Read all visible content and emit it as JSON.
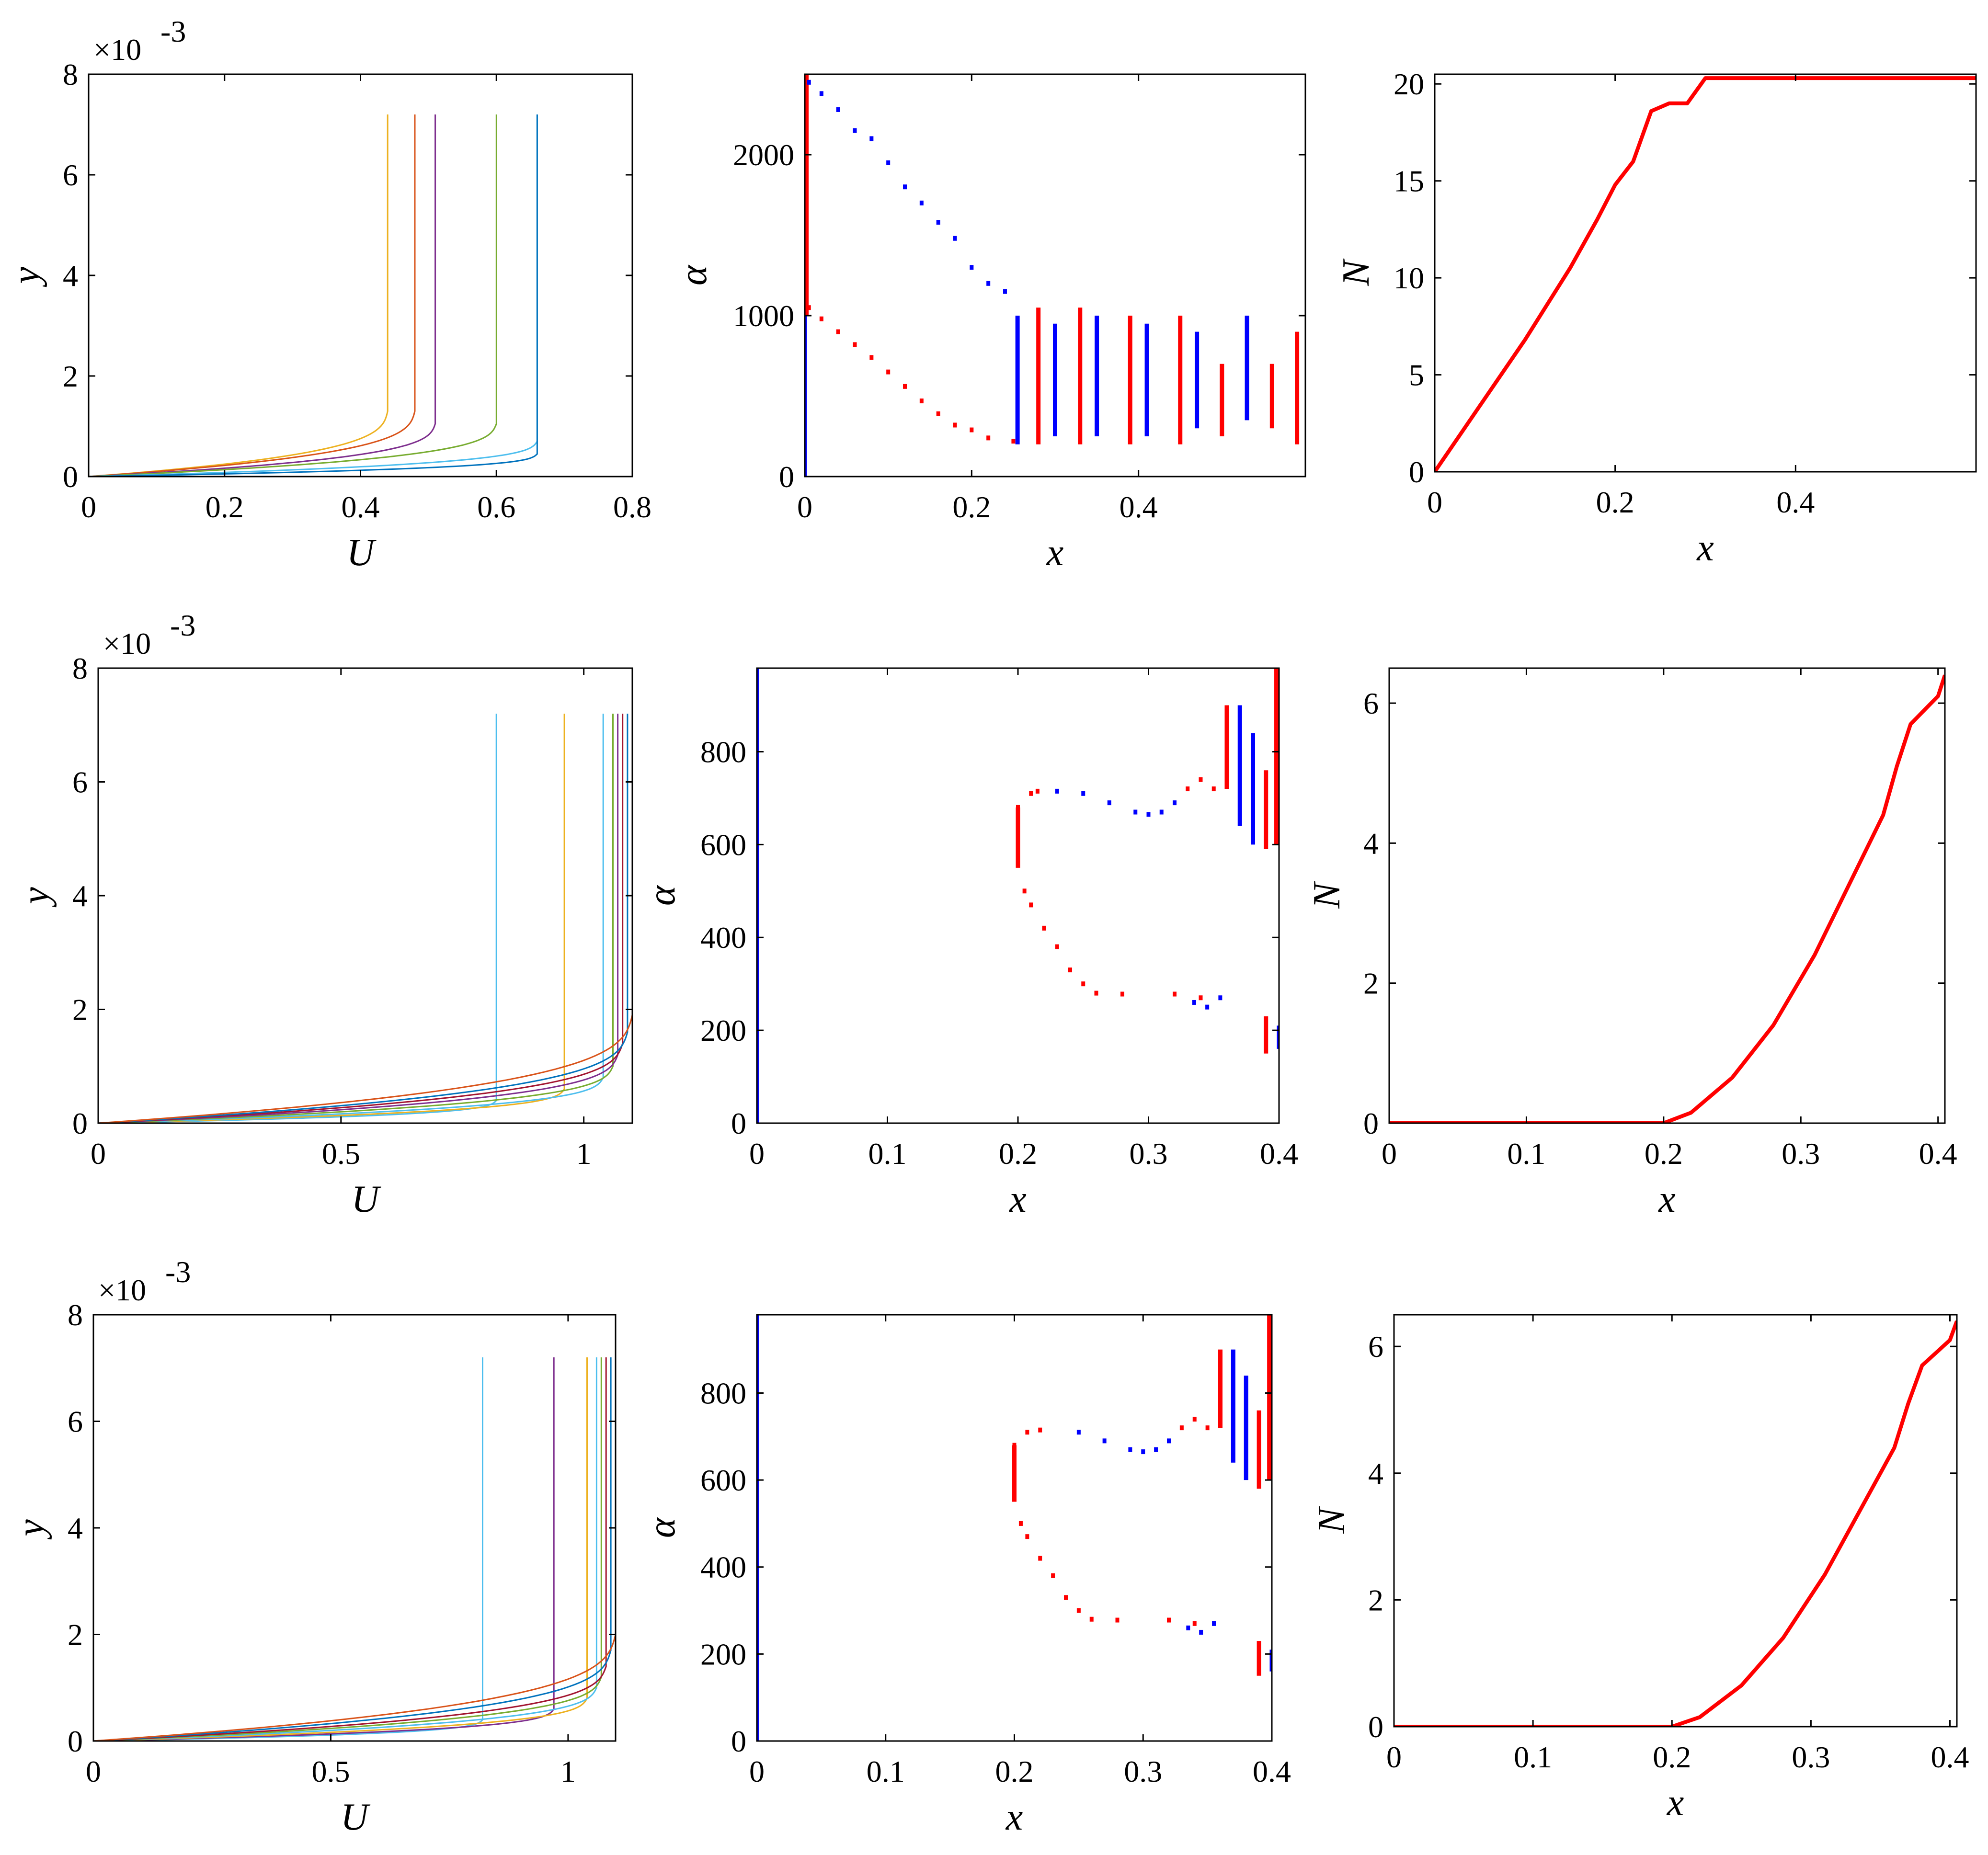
{
  "chart_data": [
    {
      "id": "row1-U",
      "type": "line",
      "xlabel": "U",
      "ylabel": "y",
      "exponent_label": "×10",
      "exponent_power": "-3",
      "xlim": [
        0,
        0.8
      ],
      "ylim": [
        0,
        8
      ],
      "xticks": [
        0,
        0.2,
        0.4,
        0.6,
        0.8
      ],
      "xtick_labels": [
        "0",
        "0.2",
        "0.4",
        "0.6",
        "0.8"
      ],
      "yticks": [
        0,
        2,
        4,
        6,
        8
      ],
      "ytick_labels": [
        "0",
        "2",
        "4",
        "6",
        "8"
      ],
      "profiles": [
        {
          "Ue": 0.44,
          "delta": 1.3,
          "color": "#EDB120"
        },
        {
          "Ue": 0.48,
          "delta": 1.3,
          "color": "#D95319"
        },
        {
          "Ue": 0.51,
          "delta": 1.05,
          "color": "#7E2F8E"
        },
        {
          "Ue": 0.6,
          "delta": 1.05,
          "color": "#77AC30"
        },
        {
          "Ue": 0.66,
          "delta": 0.7,
          "color": "#4DBEEE"
        },
        {
          "Ue": 0.66,
          "delta": 0.45,
          "color": "#0072BD"
        }
      ],
      "profile_top": 7.2
    },
    {
      "id": "row1-alpha",
      "type": "scatter",
      "xlabel": "x",
      "ylabel": "α",
      "xlim": [
        0,
        0.6
      ],
      "ylim": [
        0,
        2500
      ],
      "xticks": [
        0,
        0.2,
        0.4
      ],
      "xtick_labels": [
        "0",
        "0.2",
        "0.4"
      ],
      "yticks": [
        0,
        1000,
        2000
      ],
      "ytick_labels": [
        "0",
        "1000",
        "2000"
      ],
      "series": [
        {
          "color": "#ff0000",
          "points": [
            [
              0.005,
              1050
            ],
            [
              0.02,
              980
            ],
            [
              0.04,
              900
            ],
            [
              0.06,
              820
            ],
            [
              0.08,
              740
            ],
            [
              0.1,
              650
            ],
            [
              0.12,
              560
            ],
            [
              0.14,
              470
            ],
            [
              0.16,
              390
            ],
            [
              0.18,
              320
            ],
            [
              0.2,
              290
            ],
            [
              0.22,
              240
            ],
            [
              0.25,
              220
            ]
          ]
        },
        {
          "color": "#0000ff",
          "points": [
            [
              0.005,
              2450
            ],
            [
              0.02,
              2380
            ],
            [
              0.04,
              2280
            ],
            [
              0.06,
              2150
            ],
            [
              0.08,
              2100
            ],
            [
              0.1,
              1950
            ],
            [
              0.12,
              1800
            ],
            [
              0.14,
              1700
            ],
            [
              0.16,
              1580
            ],
            [
              0.18,
              1480
            ],
            [
              0.2,
              1300
            ],
            [
              0.22,
              1200
            ],
            [
              0.24,
              1150
            ]
          ]
        }
      ],
      "bars": [
        {
          "x": 0.0,
          "y0": 0,
          "y1": 2500,
          "color": "#0000ff"
        },
        {
          "x": 0.002,
          "y0": 1000,
          "y1": 2500,
          "color": "#ff0000"
        },
        {
          "x": 0.255,
          "y0": 200,
          "y1": 1000,
          "color": "#0000ff"
        },
        {
          "x": 0.28,
          "y0": 200,
          "y1": 1050,
          "color": "#ff0000"
        },
        {
          "x": 0.3,
          "y0": 250,
          "y1": 950,
          "color": "#0000ff"
        },
        {
          "x": 0.33,
          "y0": 200,
          "y1": 1050,
          "color": "#ff0000"
        },
        {
          "x": 0.35,
          "y0": 250,
          "y1": 1000,
          "color": "#0000ff"
        },
        {
          "x": 0.39,
          "y0": 200,
          "y1": 1000,
          "color": "#ff0000"
        },
        {
          "x": 0.41,
          "y0": 250,
          "y1": 950,
          "color": "#0000ff"
        },
        {
          "x": 0.45,
          "y0": 200,
          "y1": 1000,
          "color": "#ff0000"
        },
        {
          "x": 0.47,
          "y0": 300,
          "y1": 900,
          "color": "#0000ff"
        },
        {
          "x": 0.5,
          "y0": 250,
          "y1": 700,
          "color": "#ff0000"
        },
        {
          "x": 0.53,
          "y0": 350,
          "y1": 1000,
          "color": "#0000ff"
        },
        {
          "x": 0.56,
          "y0": 300,
          "y1": 700,
          "color": "#ff0000"
        },
        {
          "x": 0.59,
          "y0": 200,
          "y1": 900,
          "color": "#ff0000"
        }
      ]
    },
    {
      "id": "row1-N",
      "type": "line",
      "xlabel": "x",
      "ylabel": "N",
      "xlim": [
        0,
        0.6
      ],
      "ylim": [
        0,
        20.5
      ],
      "xticks": [
        0,
        0.2,
        0.4
      ],
      "xtick_labels": [
        "0",
        "0.2",
        "0.4"
      ],
      "yticks": [
        0,
        5,
        10,
        15,
        20
      ],
      "ytick_labels": [
        "0",
        "5",
        "10",
        "15",
        "20"
      ],
      "color": "#ff0000",
      "x": [
        0,
        0.05,
        0.1,
        0.15,
        0.18,
        0.2,
        0.22,
        0.24,
        0.26,
        0.28,
        0.3,
        0.35,
        0.4,
        0.5,
        0.6
      ],
      "y": [
        0,
        3.4,
        6.8,
        10.5,
        13.0,
        14.8,
        16.0,
        18.6,
        19.0,
        19.0,
        20.3,
        20.3,
        20.3,
        20.3,
        20.3
      ]
    },
    {
      "id": "row2-U",
      "type": "line",
      "xlabel": "U",
      "ylabel": "y",
      "exponent_label": "×10",
      "exponent_power": "-3",
      "xlim": [
        0,
        1.1
      ],
      "ylim": [
        0,
        8
      ],
      "xticks": [
        0,
        0.5,
        1
      ],
      "xtick_labels": [
        "0",
        "0.5",
        "1"
      ],
      "yticks": [
        0,
        2,
        4,
        6,
        8
      ],
      "ytick_labels": [
        "0",
        "2",
        "4",
        "6",
        "8"
      ],
      "profiles": [
        {
          "Ue": 0.82,
          "delta": 0.4,
          "color": "#4DBEEE"
        },
        {
          "Ue": 0.96,
          "delta": 0.6,
          "color": "#EDB120"
        },
        {
          "Ue": 1.04,
          "delta": 0.8,
          "color": "#4DBEEE"
        },
        {
          "Ue": 1.06,
          "delta": 1.0,
          "color": "#77AC30"
        },
        {
          "Ue": 1.07,
          "delta": 1.2,
          "color": "#7E2F8E"
        },
        {
          "Ue": 1.08,
          "delta": 1.4,
          "color": "#A2142F"
        },
        {
          "Ue": 1.09,
          "delta": 1.6,
          "color": "#0072BD"
        },
        {
          "Ue": 1.1,
          "delta": 1.9,
          "color": "#D95319"
        }
      ],
      "profile_top": 7.2
    },
    {
      "id": "row2-alpha",
      "type": "scatter",
      "xlabel": "x",
      "ylabel": "α",
      "xlim": [
        0,
        0.4
      ],
      "ylim": [
        0,
        980
      ],
      "xticks": [
        0,
        0.1,
        0.2,
        0.3,
        0.4
      ],
      "xtick_labels": [
        "0",
        "0.1",
        "0.2",
        "0.3",
        "0.4"
      ],
      "yticks": [
        0,
        200,
        400,
        600,
        800
      ],
      "ytick_labels": [
        "0",
        "200",
        "400",
        "600",
        "800"
      ],
      "series": [
        {
          "color": "#ff0000",
          "points": [
            [
              0.2,
              680
            ],
            [
              0.21,
              710
            ],
            [
              0.215,
              715
            ],
            [
              0.205,
              500
            ],
            [
              0.21,
              470
            ],
            [
              0.22,
              420
            ],
            [
              0.23,
              380
            ],
            [
              0.24,
              330
            ],
            [
              0.25,
              300
            ],
            [
              0.26,
              280
            ],
            [
              0.28,
              278
            ],
            [
              0.32,
              278
            ],
            [
              0.34,
              270
            ],
            [
              0.33,
              720
            ],
            [
              0.34,
              740
            ],
            [
              0.35,
              720
            ]
          ]
        },
        {
          "color": "#0000ff",
          "points": [
            [
              0.23,
              715
            ],
            [
              0.25,
              710
            ],
            [
              0.27,
              690
            ],
            [
              0.29,
              670
            ],
            [
              0.3,
              665
            ],
            [
              0.31,
              670
            ],
            [
              0.32,
              690
            ],
            [
              0.335,
              260
            ],
            [
              0.345,
              250
            ],
            [
              0.355,
              270
            ]
          ]
        }
      ],
      "bars": [
        {
          "x": 0.0,
          "y0": 0,
          "y1": 980,
          "color": "#0000ff"
        },
        {
          "x": 0.2,
          "y0": 550,
          "y1": 680,
          "color": "#ff0000"
        },
        {
          "x": 0.36,
          "y0": 720,
          "y1": 900,
          "color": "#ff0000"
        },
        {
          "x": 0.37,
          "y0": 640,
          "y1": 900,
          "color": "#0000ff"
        },
        {
          "x": 0.38,
          "y0": 600,
          "y1": 840,
          "color": "#0000ff"
        },
        {
          "x": 0.39,
          "y0": 590,
          "y1": 760,
          "color": "#ff0000"
        },
        {
          "x": 0.398,
          "y0": 600,
          "y1": 980,
          "color": "#ff0000"
        },
        {
          "x": 0.39,
          "y0": 150,
          "y1": 230,
          "color": "#ff0000"
        },
        {
          "x": 0.4,
          "y0": 160,
          "y1": 210,
          "color": "#0000ff"
        }
      ]
    },
    {
      "id": "row2-N",
      "type": "line",
      "xlabel": "x",
      "ylabel": "N",
      "xlim": [
        0,
        0.405
      ],
      "ylim": [
        0,
        6.5
      ],
      "xticks": [
        0,
        0.1,
        0.2,
        0.3,
        0.4
      ],
      "xtick_labels": [
        "0",
        "0.1",
        "0.2",
        "0.3",
        "0.4"
      ],
      "yticks": [
        0,
        2,
        4,
        6
      ],
      "ytick_labels": [
        "0",
        "2",
        "4",
        "6"
      ],
      "color": "#ff0000",
      "x": [
        0,
        0.1,
        0.2,
        0.22,
        0.25,
        0.28,
        0.31,
        0.34,
        0.36,
        0.37,
        0.38,
        0.39,
        0.4,
        0.405
      ],
      "y": [
        0,
        0,
        0,
        0.15,
        0.65,
        1.4,
        2.4,
        3.6,
        4.4,
        5.1,
        5.7,
        5.9,
        6.1,
        6.4
      ]
    },
    {
      "id": "row3-U",
      "type": "line",
      "xlabel": "U",
      "ylabel": "y",
      "exponent_label": "×10",
      "exponent_power": "-3",
      "xlim": [
        0,
        1.1
      ],
      "ylim": [
        0,
        8
      ],
      "xticks": [
        0,
        0.5,
        1
      ],
      "xtick_labels": [
        "0",
        "0.5",
        "1"
      ],
      "yticks": [
        0,
        2,
        4,
        6,
        8
      ],
      "ytick_labels": [
        "0",
        "2",
        "4",
        "6",
        "8"
      ],
      "profiles": [
        {
          "Ue": 0.82,
          "delta": 0.4,
          "color": "#4DBEEE"
        },
        {
          "Ue": 0.97,
          "delta": 0.6,
          "color": "#7E2F8E"
        },
        {
          "Ue": 1.04,
          "delta": 0.8,
          "color": "#EDB120"
        },
        {
          "Ue": 1.06,
          "delta": 1.0,
          "color": "#4DBEEE"
        },
        {
          "Ue": 1.07,
          "delta": 1.2,
          "color": "#77AC30"
        },
        {
          "Ue": 1.08,
          "delta": 1.4,
          "color": "#A2142F"
        },
        {
          "Ue": 1.09,
          "delta": 1.7,
          "color": "#0072BD"
        },
        {
          "Ue": 1.1,
          "delta": 2.0,
          "color": "#D95319"
        }
      ],
      "profile_top": 7.2
    },
    {
      "id": "row3-alpha",
      "type": "scatter",
      "xlabel": "x",
      "ylabel": "α",
      "xlim": [
        0,
        0.4
      ],
      "ylim": [
        0,
        980
      ],
      "xticks": [
        0,
        0.1,
        0.2,
        0.3,
        0.4
      ],
      "xtick_labels": [
        "0",
        "0.1",
        "0.2",
        "0.3",
        "0.4"
      ],
      "yticks": [
        0,
        200,
        400,
        600,
        800
      ],
      "ytick_labels": [
        "0",
        "200",
        "400",
        "600",
        "800"
      ],
      "series": [
        {
          "color": "#ff0000",
          "points": [
            [
              0.2,
              680
            ],
            [
              0.21,
              710
            ],
            [
              0.22,
              715
            ],
            [
              0.205,
              500
            ],
            [
              0.21,
              470
            ],
            [
              0.22,
              420
            ],
            [
              0.23,
              380
            ],
            [
              0.24,
              330
            ],
            [
              0.25,
              300
            ],
            [
              0.26,
              280
            ],
            [
              0.28,
              278
            ],
            [
              0.32,
              278
            ],
            [
              0.34,
              270
            ],
            [
              0.33,
              720
            ],
            [
              0.34,
              740
            ],
            [
              0.35,
              720
            ]
          ]
        },
        {
          "color": "#0000ff",
          "points": [
            [
              0.25,
              710
            ],
            [
              0.27,
              690
            ],
            [
              0.29,
              670
            ],
            [
              0.3,
              665
            ],
            [
              0.31,
              670
            ],
            [
              0.32,
              690
            ],
            [
              0.335,
              260
            ],
            [
              0.345,
              250
            ],
            [
              0.355,
              270
            ]
          ]
        }
      ],
      "bars": [
        {
          "x": 0.0,
          "y0": 0,
          "y1": 980,
          "color": "#0000ff"
        },
        {
          "x": 0.2,
          "y0": 550,
          "y1": 680,
          "color": "#ff0000"
        },
        {
          "x": 0.36,
          "y0": 720,
          "y1": 900,
          "color": "#ff0000"
        },
        {
          "x": 0.37,
          "y0": 640,
          "y1": 900,
          "color": "#0000ff"
        },
        {
          "x": 0.38,
          "y0": 600,
          "y1": 840,
          "color": "#0000ff"
        },
        {
          "x": 0.39,
          "y0": 580,
          "y1": 760,
          "color": "#ff0000"
        },
        {
          "x": 0.398,
          "y0": 600,
          "y1": 980,
          "color": "#ff0000"
        },
        {
          "x": 0.39,
          "y0": 150,
          "y1": 230,
          "color": "#ff0000"
        },
        {
          "x": 0.4,
          "y0": 160,
          "y1": 210,
          "color": "#0000ff"
        }
      ]
    },
    {
      "id": "row3-N",
      "type": "line",
      "xlabel": "x",
      "ylabel": "N",
      "xlim": [
        0,
        0.405
      ],
      "ylim": [
        0,
        6.5
      ],
      "xticks": [
        0,
        0.1,
        0.2,
        0.3,
        0.4
      ],
      "xtick_labels": [
        "0",
        "0.1",
        "0.2",
        "0.3",
        "0.4"
      ],
      "yticks": [
        0,
        2,
        4,
        6
      ],
      "ytick_labels": [
        "0",
        "2",
        "4",
        "6"
      ],
      "color": "#ff0000",
      "x": [
        0,
        0.1,
        0.2,
        0.22,
        0.25,
        0.28,
        0.31,
        0.34,
        0.36,
        0.37,
        0.38,
        0.39,
        0.4,
        0.405
      ],
      "y": [
        0,
        0,
        0,
        0.15,
        0.65,
        1.4,
        2.4,
        3.6,
        4.4,
        5.1,
        5.7,
        5.9,
        6.1,
        6.4
      ]
    }
  ]
}
